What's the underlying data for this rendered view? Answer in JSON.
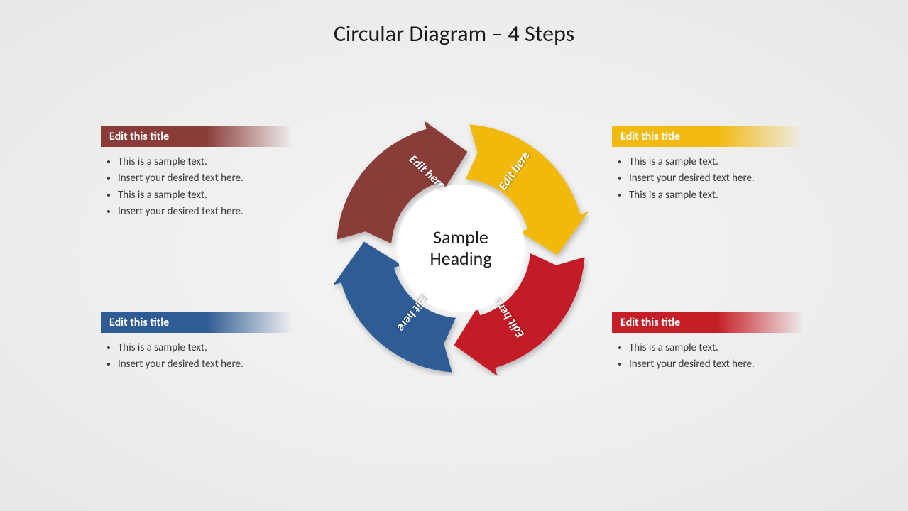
{
  "title": "Circular Diagram – 4 Steps",
  "center": {
    "line1": "Sample",
    "line2": "Heading"
  },
  "diagram": {
    "type": "circular-arrow-cycle",
    "segments": 4,
    "outer_radius": 180,
    "inner_radius": 95,
    "background": "#f0f0f0",
    "center_fill": "#ffffff",
    "label_color": "#ffffff",
    "label_fontsize": 17,
    "title_fontsize": 32,
    "center_fontsize": 26
  },
  "segments": [
    {
      "label": "Edit here",
      "color": "#8a3d38",
      "highlight": "#9e5550"
    },
    {
      "label": "Edit here",
      "color": "#f2b90f",
      "highlight": "#f6cc4a"
    },
    {
      "label": "Edit here",
      "color": "#c41f27",
      "highlight": "#d94a51"
    },
    {
      "label": "Edit here",
      "color": "#2f5c94",
      "highlight": "#4a78b0"
    }
  ],
  "callouts": {
    "tl": {
      "title": "Edit this title",
      "color": "#8a3d38",
      "bullets": [
        "This is a sample text.",
        "Insert your desired text here.",
        "This is a sample text.",
        "Insert your desired text here."
      ]
    },
    "tr": {
      "title": "Edit this title",
      "color": "#f2b90f",
      "bullets": [
        "This is a sample text.",
        "Insert your desired text here.",
        "This is a sample text."
      ]
    },
    "bl": {
      "title": "Edit this title",
      "color": "#2f5c94",
      "bullets": [
        "This is a sample text.",
        "Insert your desired text here."
      ]
    },
    "br": {
      "title": "Edit this title",
      "color": "#c41f27",
      "bullets": [
        "This is a sample text.",
        "Insert your desired text here."
      ]
    }
  }
}
